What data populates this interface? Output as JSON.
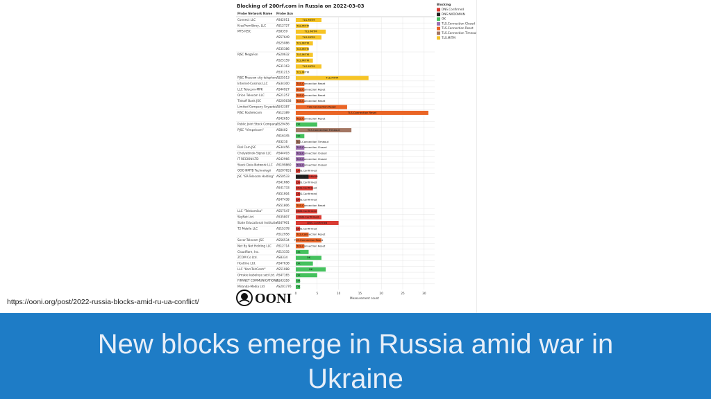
{
  "slide": {
    "title": "New blocks emerge in Russia amid war in Ukraine",
    "source_url": "https://ooni.org/post/2022-russia-blocks-amid-ru-ua-conflict/",
    "logo_text": "OONI"
  },
  "chart_data": {
    "type": "bar",
    "orientation": "horizontal",
    "stacked": true,
    "title": "Blocking of 200rf.com in Russia on 2022-03-03",
    "columns": [
      "Probe Network Name",
      "Probe Asn"
    ],
    "categories": [
      "Connect LLC",
      "KrasPromStroy, LLC",
      "MTS PJSC",
      null,
      null,
      null,
      "PJSC MegaFon",
      null,
      null,
      null,
      "PJSC Moscow city telephon...",
      "Internet-Cosmos LLC",
      "LLC Telecom-MPK",
      "Orion Telecom LLC",
      "Tinkoff Bank JSC",
      "Limited Company Svyaztel...",
      "PJSC Rostelecom",
      null,
      "Public Joint Stock Company...",
      "PJSC \"Vimpelcom\"",
      null,
      null,
      "Rial Com JSC",
      "Chelyabinsk-Signal LLC",
      "IT REGION LTD",
      "Stack Data Network LLC",
      "OOO NMTB Technologii",
      "JSC \"ER-Telecom Holding\"",
      null,
      null,
      null,
      null,
      null,
      "LLC \"Telekomika\"",
      "SkyNet Ltd.",
      "State Educational Institutio...",
      "T2 Mobile LLC",
      null,
      "Sever-Telecom JSC",
      "Net By Net Holding LLC",
      "Cloudflare, Inc.",
      "ZCOM Co Ltd.",
      "Hostline Ltd.",
      "LLC \"KomTehCentr\"",
      "Omskie kabelnye seti Ltd.",
      "FIRANET COMMUNICATIONS...",
      "Miranda-Media Ltd"
    ],
    "asns": [
      "AS42011",
      "AS12727",
      "AS8359",
      "AS57649",
      "AS25086",
      "AS35386",
      "AS20632",
      "AS25159",
      "AS31163",
      "AS31213",
      "AS25513",
      "AS34300",
      "AS44927",
      "AS21257",
      "AS205638",
      "AS42387",
      "AS12389",
      "AS42610",
      "AS29456",
      "AS8402",
      "AS16345",
      "AS3216",
      "AS34456",
      "AS44493",
      "AS42966",
      "AS199860",
      "AS207651",
      "AS50533",
      "AS41668",
      "AS41733",
      "AS51604",
      "AS47438",
      "AS51806",
      "AS57547",
      "AS35807",
      "AS47901",
      "AS15378",
      "AS12958",
      "AS56534",
      "AS12714",
      "AS13335",
      "AS8334",
      "AS47638",
      "AS51088",
      "AS47165",
      "AS43359",
      "AS201776"
    ],
    "legend_title": "Blocking",
    "series": [
      {
        "name": "DNS.Confirmed",
        "color": "#d93a32",
        "values": [
          null,
          null,
          null,
          null,
          null,
          null,
          null,
          null,
          null,
          null,
          null,
          null,
          null,
          null,
          null,
          null,
          null,
          null,
          null,
          null,
          null,
          null,
          null,
          null,
          null,
          null,
          1,
          2,
          1,
          4,
          1,
          1,
          null,
          5,
          6,
          10,
          1,
          null,
          null,
          null,
          null,
          null,
          null,
          null,
          null,
          null,
          null
        ]
      },
      {
        "name": "DNS.NXDOMAIN",
        "color": "#222222",
        "values": [
          null,
          null,
          null,
          null,
          null,
          null,
          null,
          null,
          null,
          null,
          null,
          null,
          null,
          null,
          null,
          null,
          null,
          null,
          null,
          null,
          null,
          null,
          null,
          null,
          null,
          null,
          null,
          3,
          null,
          null,
          null,
          null,
          null,
          null,
          null,
          null,
          null,
          null,
          null,
          null,
          null,
          null,
          null,
          null,
          null,
          null,
          null
        ]
      },
      {
        "name": "OK",
        "color": "#45c15e",
        "values": [
          null,
          null,
          null,
          null,
          null,
          null,
          null,
          null,
          null,
          null,
          null,
          null,
          null,
          null,
          null,
          null,
          null,
          null,
          5,
          null,
          2,
          null,
          null,
          null,
          null,
          null,
          null,
          null,
          null,
          null,
          null,
          null,
          null,
          null,
          null,
          null,
          null,
          null,
          null,
          null,
          3,
          6,
          4,
          7,
          5,
          1,
          1
        ]
      },
      {
        "name": "TLS.Connection Closed",
        "color": "#9d6fb0",
        "values": [
          null,
          null,
          null,
          null,
          null,
          null,
          null,
          null,
          null,
          null,
          null,
          null,
          null,
          null,
          null,
          null,
          null,
          null,
          null,
          null,
          null,
          null,
          2,
          2,
          2,
          2,
          null,
          null,
          null,
          null,
          null,
          null,
          null,
          null,
          null,
          null,
          null,
          null,
          null,
          null,
          null,
          null,
          null,
          null,
          null,
          null,
          null
        ]
      },
      {
        "name": "TLS.Connection Reset",
        "color": "#ea6425",
        "values": [
          null,
          null,
          null,
          null,
          null,
          null,
          null,
          null,
          null,
          null,
          null,
          2,
          2,
          2,
          2,
          12,
          31,
          2,
          null,
          null,
          null,
          null,
          null,
          null,
          null,
          null,
          null,
          null,
          null,
          null,
          null,
          null,
          2,
          null,
          null,
          null,
          null,
          3,
          6,
          2,
          null,
          null,
          null,
          null,
          null,
          null,
          null
        ]
      },
      {
        "name": "TLS.Connection Timeout",
        "color": "#a37663",
        "values": [
          null,
          null,
          null,
          null,
          null,
          null,
          null,
          null,
          null,
          null,
          null,
          null,
          null,
          null,
          null,
          null,
          null,
          null,
          null,
          13,
          null,
          1,
          null,
          null,
          null,
          null,
          null,
          null,
          null,
          null,
          null,
          null,
          null,
          null,
          null,
          null,
          null,
          null,
          null,
          null,
          null,
          null,
          null,
          null,
          null,
          null,
          null
        ]
      },
      {
        "name": "TLS.MITM",
        "color": "#f6c426",
        "values": [
          6,
          3,
          7,
          6,
          4,
          3,
          4,
          4,
          6,
          2,
          17,
          null,
          null,
          null,
          null,
          null,
          null,
          null,
          null,
          null,
          null,
          null,
          null,
          null,
          null,
          null,
          null,
          null,
          null,
          null,
          null,
          null,
          null,
          null,
          null,
          null,
          null,
          null,
          null,
          null,
          null,
          null,
          null,
          null,
          null,
          null,
          null
        ]
      }
    ],
    "x_label": "Measurement count",
    "xlim": [
      0,
      31
    ],
    "xticks": [
      0,
      5,
      10,
      15,
      20,
      25,
      30
    ],
    "grid": true
  }
}
